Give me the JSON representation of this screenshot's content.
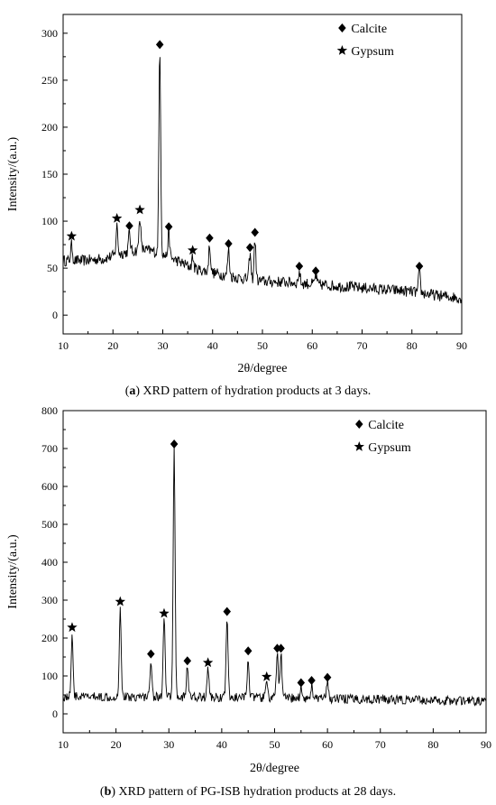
{
  "chart_data": [
    {
      "type": "line",
      "panel": "a",
      "caption_letter": "a",
      "caption_text": "XRD pattern of hydration products at 3 days.",
      "xlabel": "2θ/degree",
      "ylabel": "Intensity/(a.u.)",
      "xlim": [
        10,
        90
      ],
      "ylim": [
        -20,
        320
      ],
      "xticks": [
        10,
        20,
        30,
        40,
        50,
        60,
        70,
        80,
        90
      ],
      "yticks": [
        0,
        50,
        100,
        150,
        200,
        250,
        300
      ],
      "legend_position": "top-right",
      "legend": [
        {
          "marker": "diamond",
          "label": "Calcite"
        },
        {
          "marker": "star",
          "label": "Gypsum"
        }
      ],
      "baseline": [
        [
          10,
          58
        ],
        [
          14,
          58
        ],
        [
          18,
          60
        ],
        [
          22,
          66
        ],
        [
          26,
          70
        ],
        [
          28,
          68
        ],
        [
          32,
          60
        ],
        [
          36,
          50
        ],
        [
          40,
          45
        ],
        [
          45,
          40
        ],
        [
          50,
          36
        ],
        [
          55,
          35
        ],
        [
          60,
          33
        ],
        [
          65,
          31
        ],
        [
          70,
          29
        ],
        [
          75,
          27
        ],
        [
          80,
          25
        ],
        [
          85,
          21
        ],
        [
          90,
          18
        ]
      ],
      "noise_amplitude": 6,
      "peaks": [
        {
          "x": 11.7,
          "y": 75,
          "phase": "gypsum",
          "marker_y": 84
        },
        {
          "x": 20.8,
          "y": 95,
          "phase": "gypsum",
          "marker_y": 103
        },
        {
          "x": 23.3,
          "y": 88,
          "phase": "calcite",
          "marker_y": 95
        },
        {
          "x": 25.4,
          "y": 105,
          "phase": "gypsum",
          "marker_y": 112
        },
        {
          "x": 29.4,
          "y": 285,
          "phase": "calcite",
          "marker_y": 288
        },
        {
          "x": 31.2,
          "y": 87,
          "phase": "calcite",
          "marker_y": 94
        },
        {
          "x": 36.0,
          "y": 62,
          "phase": "gypsum",
          "marker_y": 69
        },
        {
          "x": 39.4,
          "y": 75,
          "phase": "calcite",
          "marker_y": 82
        },
        {
          "x": 43.2,
          "y": 70,
          "phase": "calcite",
          "marker_y": 76
        },
        {
          "x": 47.5,
          "y": 65,
          "phase": "calcite",
          "marker_y": 72
        },
        {
          "x": 48.5,
          "y": 80,
          "phase": "calcite",
          "marker_y": 88
        },
        {
          "x": 57.4,
          "y": 46,
          "phase": "calcite",
          "marker_y": 52
        },
        {
          "x": 60.7,
          "y": 42,
          "phase": "calcite",
          "marker_y": 47
        },
        {
          "x": 81.5,
          "y": 47,
          "phase": "calcite",
          "marker_y": 52
        }
      ]
    },
    {
      "type": "line",
      "panel": "b",
      "caption_letter": "b",
      "caption_text": "XRD pattern of PG-ISB hydration products at 28 days.",
      "xlabel": "2θ/degree",
      "ylabel": "Intensity/(a.u.)",
      "xlim": [
        10,
        90
      ],
      "ylim": [
        -50,
        800
      ],
      "xticks": [
        10,
        20,
        30,
        40,
        50,
        60,
        70,
        80,
        90
      ],
      "yticks": [
        0,
        100,
        200,
        300,
        400,
        500,
        600,
        700,
        800
      ],
      "legend_position": "top-right",
      "legend": [
        {
          "marker": "diamond",
          "label": "Calcite"
        },
        {
          "marker": "star",
          "label": "Gypsum"
        }
      ],
      "baseline": [
        [
          10,
          45
        ],
        [
          30,
          45
        ],
        [
          50,
          42
        ],
        [
          70,
          38
        ],
        [
          90,
          33
        ]
      ],
      "noise_amplitude": 12,
      "peaks": [
        {
          "x": 11.7,
          "y": 210,
          "phase": "gypsum",
          "marker_y": 228
        },
        {
          "x": 20.8,
          "y": 280,
          "phase": "gypsum",
          "marker_y": 296
        },
        {
          "x": 26.6,
          "y": 145,
          "phase": "calcite",
          "marker_y": 158
        },
        {
          "x": 29.1,
          "y": 250,
          "phase": "gypsum",
          "marker_y": 265
        },
        {
          "x": 31.0,
          "y": 700,
          "phase": "calcite",
          "marker_y": 712
        },
        {
          "x": 33.5,
          "y": 125,
          "phase": "calcite",
          "marker_y": 140
        },
        {
          "x": 37.4,
          "y": 120,
          "phase": "gypsum",
          "marker_y": 135
        },
        {
          "x": 41.0,
          "y": 255,
          "phase": "calcite",
          "marker_y": 270
        },
        {
          "x": 45.0,
          "y": 150,
          "phase": "calcite",
          "marker_y": 166
        },
        {
          "x": 48.5,
          "y": 85,
          "phase": "gypsum",
          "marker_y": 98
        },
        {
          "x": 50.5,
          "y": 160,
          "phase": "calcite",
          "marker_y": 173
        },
        {
          "x": 51.2,
          "y": 160,
          "phase": "calcite",
          "marker_y": 173
        },
        {
          "x": 55.0,
          "y": 70,
          "phase": "calcite",
          "marker_y": 82
        },
        {
          "x": 57.0,
          "y": 75,
          "phase": "calcite",
          "marker_y": 88
        },
        {
          "x": 60.0,
          "y": 82,
          "phase": "calcite",
          "marker_y": 96
        }
      ]
    }
  ]
}
